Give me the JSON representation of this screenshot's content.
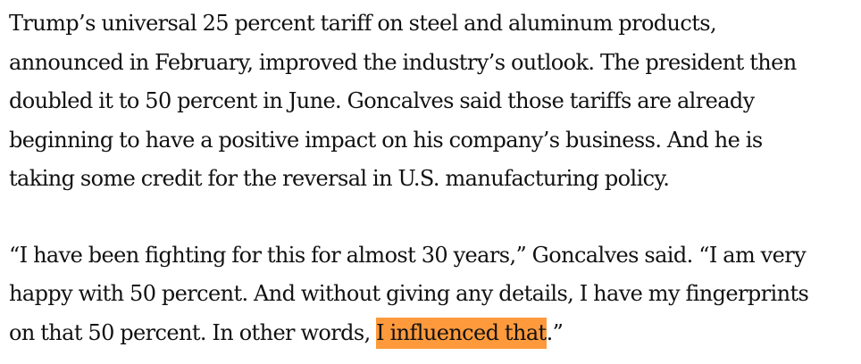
{
  "article": {
    "paragraph_1": {
      "lines": [
        "Trump’s universal 25 percent tariff on steel and aluminum products,",
        "announced in February, improved the industry’s outlook. The president then",
        "doubled it to 50 percent in June. Goncalves said those tariffs are already",
        "beginning to have a positive impact on his company’s business. And he is",
        "taking some credit for the reversal in U.S. manufacturing policy."
      ]
    },
    "paragraph_2": {
      "lines": [
        "“I have been fighting for this for almost 30 years,” Goncalves said. “I am very",
        "happy with 50 percent. And without giving any details, I have my fingerprints"
      ],
      "last_line_before": "on that 50 percent. In other words, ",
      "last_line_highlight": "I influenced that",
      "last_line_after": ".”"
    },
    "highlight_color": "#ff9a3c"
  }
}
